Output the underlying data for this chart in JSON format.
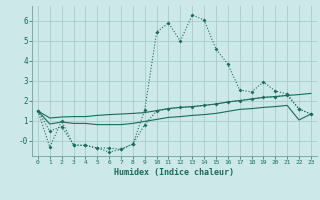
{
  "xlabel": "Humidex (Indice chaleur)",
  "background_color": "#cce8e8",
  "grid_color": "#aacccc",
  "line_color": "#1a6b5a",
  "xlim": [
    -0.5,
    23.5
  ],
  "ylim": [
    -0.75,
    6.75
  ],
  "xticks": [
    0,
    1,
    2,
    3,
    4,
    5,
    6,
    7,
    8,
    9,
    10,
    11,
    12,
    13,
    14,
    15,
    16,
    17,
    18,
    19,
    20,
    21,
    22,
    23
  ],
  "yticks": [
    0,
    1,
    2,
    3,
    4,
    5,
    6
  ],
  "ytick_labels": [
    "-0",
    "1",
    "2",
    "3",
    "4",
    "5",
    "6"
  ],
  "series1": [
    1.5,
    -0.3,
    1.0,
    -0.2,
    -0.22,
    -0.35,
    -0.55,
    -0.42,
    -0.15,
    1.55,
    5.45,
    5.9,
    5.0,
    6.3,
    6.05,
    4.6,
    3.85,
    2.55,
    2.45,
    2.95,
    2.5,
    2.35,
    1.6,
    1.35
  ],
  "series2": [
    1.5,
    1.15,
    1.2,
    1.22,
    1.22,
    1.28,
    1.32,
    1.35,
    1.38,
    1.42,
    1.52,
    1.62,
    1.68,
    1.72,
    1.78,
    1.85,
    1.95,
    2.02,
    2.1,
    2.18,
    2.22,
    2.28,
    2.32,
    2.38
  ],
  "series3": [
    1.5,
    0.85,
    0.95,
    0.88,
    0.88,
    0.82,
    0.82,
    0.82,
    0.88,
    0.98,
    1.08,
    1.18,
    1.22,
    1.28,
    1.32,
    1.38,
    1.48,
    1.58,
    1.62,
    1.68,
    1.72,
    1.78,
    1.05,
    1.35
  ],
  "series4": [
    1.5,
    0.5,
    0.72,
    -0.2,
    -0.22,
    -0.35,
    -0.35,
    -0.42,
    -0.15,
    0.82,
    1.5,
    1.62,
    1.68,
    1.72,
    1.78,
    1.85,
    1.95,
    2.02,
    2.1,
    2.18,
    2.22,
    2.28,
    1.6,
    1.35
  ]
}
